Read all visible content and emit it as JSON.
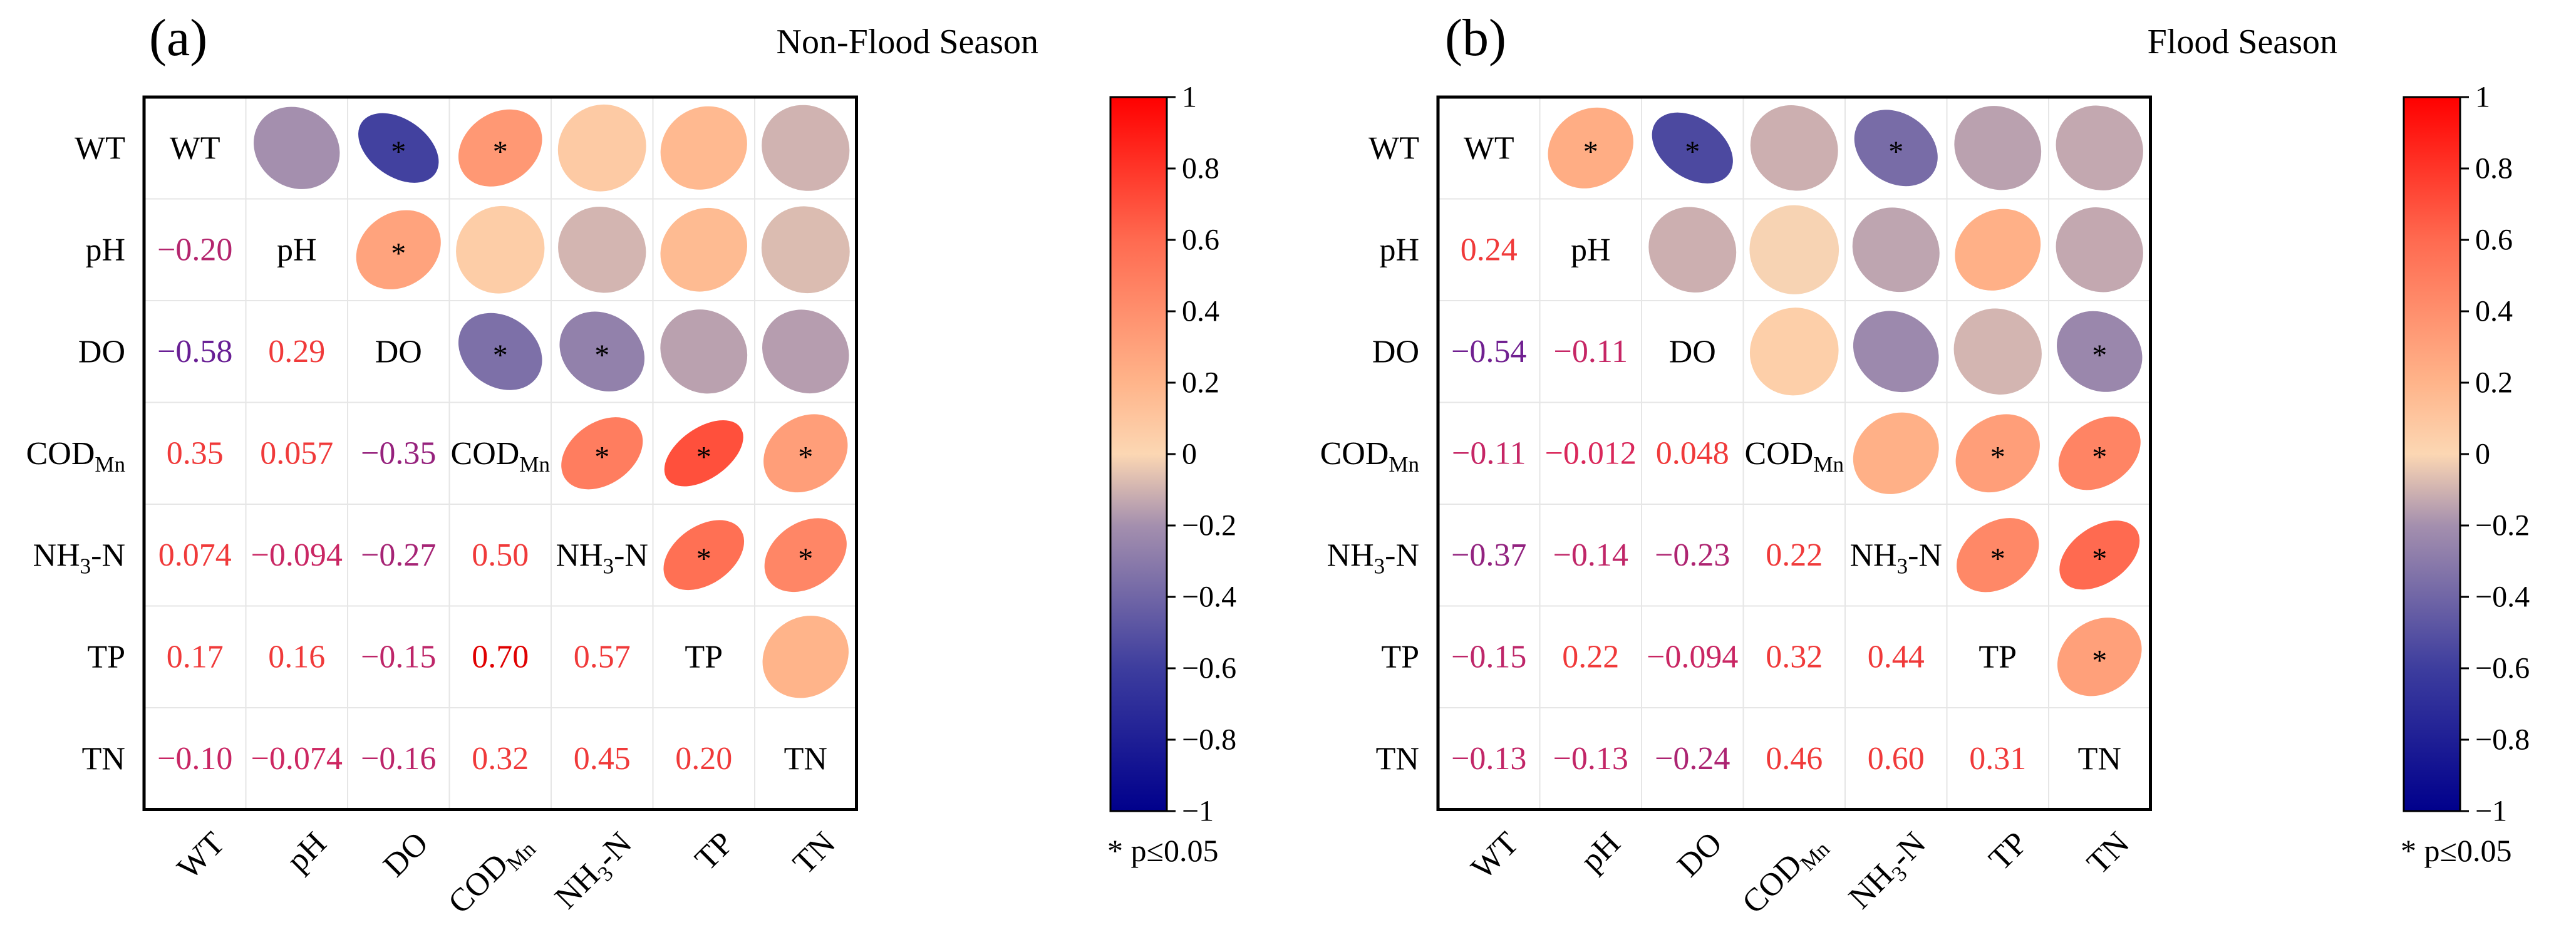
{
  "chart_data": [
    {
      "type": "heatmap",
      "panel_label": "(a)",
      "title": "Non-Flood Season",
      "variables": [
        "WT",
        "pH",
        "DO",
        "CODMn",
        "NH3-N",
        "TP",
        "TN"
      ],
      "variable_labels": [
        {
          "base": "WT"
        },
        {
          "base": "pH"
        },
        {
          "base": "DO"
        },
        {
          "base": "COD",
          "sub": "Mn"
        },
        {
          "base": "NH",
          "sub": "3",
          "tail": "-N"
        },
        {
          "base": "TP"
        },
        {
          "base": "TN"
        }
      ],
      "lower_triangle_values": [
        {
          "row": "pH",
          "col": "WT",
          "label": "−0.20"
        },
        {
          "row": "DO",
          "col": "WT",
          "label": "−0.58"
        },
        {
          "row": "DO",
          "col": "pH",
          "label": "0.29"
        },
        {
          "row": "CODMn",
          "col": "WT",
          "label": "0.35"
        },
        {
          "row": "CODMn",
          "col": "pH",
          "label": "0.057"
        },
        {
          "row": "CODMn",
          "col": "DO",
          "label": "−0.35"
        },
        {
          "row": "NH3-N",
          "col": "WT",
          "label": "0.074"
        },
        {
          "row": "NH3-N",
          "col": "pH",
          "label": "−0.094"
        },
        {
          "row": "NH3-N",
          "col": "DO",
          "label": "−0.27"
        },
        {
          "row": "NH3-N",
          "col": "CODMn",
          "label": "0.50"
        },
        {
          "row": "TP",
          "col": "WT",
          "label": "0.17"
        },
        {
          "row": "TP",
          "col": "pH",
          "label": "0.16"
        },
        {
          "row": "TP",
          "col": "DO",
          "label": "−0.15"
        },
        {
          "row": "TP",
          "col": "CODMn",
          "label": "0.70"
        },
        {
          "row": "TP",
          "col": "NH3-N",
          "label": "0.57"
        },
        {
          "row": "TN",
          "col": "WT",
          "label": "−0.10"
        },
        {
          "row": "TN",
          "col": "pH",
          "label": "−0.074"
        },
        {
          "row": "TN",
          "col": "DO",
          "label": "−0.16"
        },
        {
          "row": "TN",
          "col": "CODMn",
          "label": "0.32"
        },
        {
          "row": "TN",
          "col": "NH3-N",
          "label": "0.45"
        },
        {
          "row": "TN",
          "col": "TP",
          "label": "0.20"
        }
      ],
      "significant_pairs": [
        [
          "WT",
          "DO"
        ],
        [
          "WT",
          "CODMn"
        ],
        [
          "pH",
          "DO"
        ],
        [
          "DO",
          "CODMn"
        ],
        [
          "DO",
          "NH3-N"
        ],
        [
          "CODMn",
          "NH3-N"
        ],
        [
          "CODMn",
          "TP"
        ],
        [
          "CODMn",
          "TN"
        ],
        [
          "NH3-N",
          "TP"
        ],
        [
          "NH3-N",
          "TN"
        ]
      ],
      "colorbar": {
        "ticks": [
          "1",
          "0.8",
          "0.6",
          "0.4",
          "0.2",
          "0",
          "−0.2",
          "−0.4",
          "−0.6",
          "−0.8",
          "−1"
        ],
        "range": [
          -1,
          1
        ]
      },
      "note": "* p≤0.05"
    },
    {
      "type": "heatmap",
      "panel_label": "(b)",
      "title": "Flood Season",
      "variables": [
        "WT",
        "pH",
        "DO",
        "CODMn",
        "NH3-N",
        "TP",
        "TN"
      ],
      "variable_labels": [
        {
          "base": "WT"
        },
        {
          "base": "pH"
        },
        {
          "base": "DO"
        },
        {
          "base": "COD",
          "sub": "Mn"
        },
        {
          "base": "NH",
          "sub": "3",
          "tail": "-N"
        },
        {
          "base": "TP"
        },
        {
          "base": "TN"
        }
      ],
      "lower_triangle_values": [
        {
          "row": "pH",
          "col": "WT",
          "label": "0.24"
        },
        {
          "row": "DO",
          "col": "WT",
          "label": "−0.54"
        },
        {
          "row": "DO",
          "col": "pH",
          "label": "−0.11"
        },
        {
          "row": "CODMn",
          "col": "WT",
          "label": "−0.11"
        },
        {
          "row": "CODMn",
          "col": "pH",
          "label": "−0.012"
        },
        {
          "row": "CODMn",
          "col": "DO",
          "label": "0.048"
        },
        {
          "row": "NH3-N",
          "col": "WT",
          "label": "−0.37"
        },
        {
          "row": "NH3-N",
          "col": "pH",
          "label": "−0.14"
        },
        {
          "row": "NH3-N",
          "col": "DO",
          "label": "−0.23"
        },
        {
          "row": "NH3-N",
          "col": "CODMn",
          "label": "0.22"
        },
        {
          "row": "TP",
          "col": "WT",
          "label": "−0.15"
        },
        {
          "row": "TP",
          "col": "pH",
          "label": "0.22"
        },
        {
          "row": "TP",
          "col": "DO",
          "label": "−0.094"
        },
        {
          "row": "TP",
          "col": "CODMn",
          "label": "0.32"
        },
        {
          "row": "TP",
          "col": "NH3-N",
          "label": "0.44"
        },
        {
          "row": "TN",
          "col": "WT",
          "label": "−0.13"
        },
        {
          "row": "TN",
          "col": "pH",
          "label": "−0.13"
        },
        {
          "row": "TN",
          "col": "DO",
          "label": "−0.24"
        },
        {
          "row": "TN",
          "col": "CODMn",
          "label": "0.46"
        },
        {
          "row": "TN",
          "col": "NH3-N",
          "label": "0.60"
        },
        {
          "row": "TN",
          "col": "TP",
          "label": "0.31"
        }
      ],
      "significant_pairs": [
        [
          "WT",
          "pH"
        ],
        [
          "WT",
          "DO"
        ],
        [
          "WT",
          "NH3-N"
        ],
        [
          "DO",
          "TN"
        ],
        [
          "CODMn",
          "TP"
        ],
        [
          "CODMn",
          "TN"
        ],
        [
          "NH3-N",
          "TP"
        ],
        [
          "NH3-N",
          "TN"
        ],
        [
          "TP",
          "TN"
        ]
      ],
      "colorbar": {
        "ticks": [
          "1",
          "0.8",
          "0.6",
          "0.4",
          "0.2",
          "0",
          "−0.2",
          "−0.4",
          "−0.6",
          "−0.8",
          "−1"
        ],
        "range": [
          -1,
          1
        ]
      },
      "note": "* p≤0.05"
    }
  ]
}
